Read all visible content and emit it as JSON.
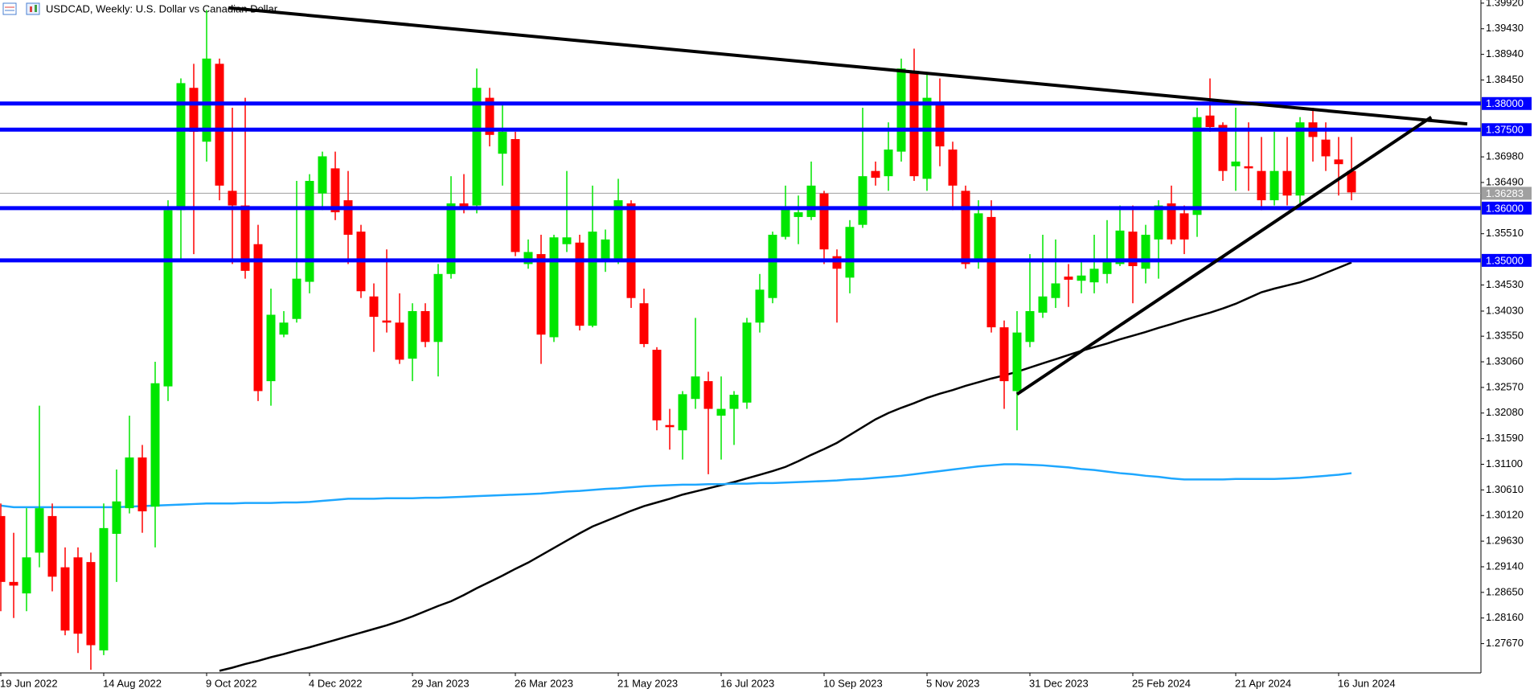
{
  "chart_data": {
    "type": "candlestick",
    "title": "USDCAD, Weekly:  U.S. Dollar vs Canadian Dollar",
    "categories": [
      "19 Jun 2022",
      null,
      null,
      null,
      null,
      null,
      null,
      null,
      "14 Aug 2022",
      null,
      null,
      null,
      null,
      null,
      null,
      null,
      "9 Oct 2022",
      null,
      null,
      null,
      null,
      null,
      null,
      null,
      "4 Dec 2022",
      null,
      null,
      null,
      null,
      null,
      null,
      null,
      "29 Jan 2023",
      null,
      null,
      null,
      null,
      null,
      null,
      null,
      "26 Mar 2023",
      null,
      null,
      null,
      null,
      null,
      null,
      null,
      "21 May 2023",
      null,
      null,
      null,
      null,
      null,
      null,
      null,
      "16 Jul 2023",
      null,
      null,
      null,
      null,
      null,
      null,
      null,
      "10 Sep 2023",
      null,
      null,
      null,
      null,
      null,
      null,
      null,
      "5 Nov 2023",
      null,
      null,
      null,
      null,
      null,
      null,
      null,
      "31 Dec 2023",
      null,
      null,
      null,
      null,
      null,
      null,
      null,
      "25 Feb 2024",
      null,
      null,
      null,
      null,
      null,
      null,
      null,
      "21 Apr 2024",
      null,
      null,
      null,
      null,
      null,
      null,
      null,
      "16 Jun 2024",
      null
    ],
    "open": [
      1.3011,
      1.2885,
      1.2863,
      1.2941,
      1.3011,
      1.2913,
      1.2932,
      1.2923,
      1.2754,
      1.2977,
      1.3026,
      1.3123,
      1.3029,
      1.3259,
      1.3596,
      1.383,
      1.3727,
      1.3876,
      1.3633,
      1.3605,
      1.3531,
      1.3269,
      1.3358,
      1.3388,
      1.3459,
      1.3628,
      1.3676,
      1.3615,
      1.3555,
      1.3431,
      1.3385,
      1.3381,
      1.3312,
      1.3403,
      1.3344,
      1.3474,
      1.3609,
      1.3605,
      1.3811,
      1.3704,
      1.3732,
      1.3493,
      1.3512,
      1.3353,
      1.3531,
      1.3534,
      1.3375,
      1.3497,
      1.3497,
      1.3609,
      1.3418,
      1.3329,
      1.3185,
      1.3175,
      1.3235,
      1.3269,
      1.3203,
      1.3216,
      1.3228,
      1.3381,
      1.3428,
      1.3545,
      1.3583,
      1.3583,
      1.3628,
      1.3508,
      1.3467,
      1.3568,
      1.3671,
      1.3661,
      1.3708,
      1.3858,
      1.3656,
      1.3798,
      1.3712,
      1.3633,
      1.3502,
      1.3583,
      1.3372,
      1.325,
      1.3344,
      1.34,
      1.3428,
      1.3469,
      1.3461,
      1.3458,
      1.3474,
      1.3493,
      1.3555,
      1.3484,
      1.354,
      1.3609,
      1.359,
      1.3587,
      1.3777,
      1.3759,
      1.368,
      1.368,
      1.3671,
      1.3615,
      1.3671,
      1.3624,
      1.3764,
      1.3731,
      1.3693,
      1.3671
    ],
    "high": [
      1.3035,
      1.2979,
      1.3026,
      1.3222,
      1.3035,
      1.2951,
      1.2951,
      1.2941,
      1.3035,
      1.31,
      1.3203,
      1.3147,
      1.3306,
      1.3615,
      1.3848,
      1.3876,
      1.3979,
      1.3886,
      1.3792,
      1.3811,
      1.3568,
      1.3446,
      1.3403,
      1.3652,
      1.3665,
      1.3708,
      1.3708,
      1.3671,
      1.3568,
      1.3456,
      1.3521,
      1.3437,
      1.3418,
      1.3418,
      1.3493,
      1.3661,
      1.3665,
      1.3867,
      1.383,
      1.3802,
      1.3746,
      1.354,
      1.3549,
      1.3549,
      1.3671,
      1.3549,
      1.3643,
      1.3559,
      1.3656,
      1.3615,
      1.3446,
      1.3334,
      1.3216,
      1.325,
      1.339,
      1.3287,
      1.3278,
      1.325,
      1.339,
      1.3474,
      1.3555,
      1.3643,
      1.3624,
      1.3689,
      1.3633,
      1.3521,
      1.3577,
      1.3792,
      1.3689,
      1.3764,
      1.3886,
      1.3905,
      1.3858,
      1.3848,
      1.3727,
      1.3643,
      1.3615,
      1.3615,
      1.3385,
      1.3403,
      1.3512,
      1.3549,
      1.354,
      1.3493,
      1.3502,
      1.3549,
      1.3577,
      1.3605,
      1.3605,
      1.3568,
      1.3615,
      1.3643,
      1.3605,
      1.3792,
      1.3848,
      1.3764,
      1.3792,
      1.3764,
      1.3736,
      1.3746,
      1.3736,
      1.3774,
      1.3792,
      1.3764,
      1.3736,
      1.3736
    ],
    "low": [
      1.2829,
      1.2816,
      1.2829,
      1.2913,
      1.2867,
      1.2783,
      1.2749,
      1.2717,
      1.2745,
      1.2885,
      1.3016,
      1.2979,
      1.2951,
      1.3231,
      1.3502,
      1.3512,
      1.3689,
      1.3615,
      1.3493,
      1.3465,
      1.3231,
      1.3222,
      1.3353,
      1.3381,
      1.3437,
      1.3596,
      1.3577,
      1.3493,
      1.3428,
      1.3325,
      1.3362,
      1.3302,
      1.3269,
      1.3334,
      1.3278,
      1.3465,
      1.359,
      1.359,
      1.3718,
      1.3643,
      1.3508,
      1.3484,
      1.3302,
      1.3344,
      1.3516,
      1.3366,
      1.3372,
      1.3478,
      1.3493,
      1.3409,
      1.3334,
      1.3175,
      1.3138,
      1.3119,
      1.3216,
      1.3091,
      1.3119,
      1.3147,
      1.3216,
      1.3362,
      1.3418,
      1.354,
      1.3531,
      1.3577,
      1.3493,
      1.3381,
      1.3437,
      1.3562,
      1.3643,
      1.3633,
      1.3689,
      1.3652,
      1.3633,
      1.368,
      1.3596,
      1.3484,
      1.3484,
      1.3362,
      1.3216,
      1.3175,
      1.3334,
      1.339,
      1.3409,
      1.3411,
      1.3437,
      1.3437,
      1.3456,
      1.3489,
      1.3418,
      1.3456,
      1.3465,
      1.3531,
      1.3512,
      1.3545,
      1.3746,
      1.3652,
      1.3633,
      1.3633,
      1.3596,
      1.3605,
      1.3605,
      1.3605,
      1.3689,
      1.3671,
      1.3624,
      1.3615
    ],
    "close": [
      1.2885,
      1.2878,
      1.2932,
      1.3026,
      1.2895,
      1.2792,
      1.2786,
      1.2764,
      1.2988,
      1.3039,
      1.3123,
      1.302,
      1.3265,
      1.3596,
      1.3839,
      1.3746,
      1.3886,
      1.3643,
      1.3605,
      1.348,
      1.325,
      1.3396,
      1.3381,
      1.3465,
      1.3652,
      1.3699,
      1.3592,
      1.3549,
      1.3441,
      1.3392,
      1.3381,
      1.331,
      1.3403,
      1.3344,
      1.3474,
      1.3609,
      1.36,
      1.383,
      1.374,
      1.3746,
      1.3516,
      1.3516,
      1.3358,
      1.3544,
      1.3544,
      1.3375,
      1.3555,
      1.354,
      1.3615,
      1.3428,
      1.334,
      1.3194,
      1.3181,
      1.3244,
      1.3278,
      1.3216,
      1.3216,
      1.3243,
      1.3381,
      1.3444,
      1.3549,
      1.3602,
      1.3592,
      1.3643,
      1.3521,
      1.3484,
      1.3564,
      1.3661,
      1.3658,
      1.3712,
      1.3867,
      1.3661,
      1.3811,
      1.3718,
      1.3643,
      1.3493,
      1.359,
      1.3372,
      1.3269,
      1.3362,
      1.3403,
      1.3431,
      1.3456,
      1.3463,
      1.3471,
      1.3484,
      1.3502,
      1.3557,
      1.3489,
      1.3549,
      1.3605,
      1.354,
      1.354,
      1.3774,
      1.3755,
      1.3671,
      1.3689,
      1.3676,
      1.3615,
      1.3671,
      1.3624,
      1.3764,
      1.3736,
      1.3699,
      1.3684,
      1.363
    ],
    "up_color": "#00e600",
    "down_color": "#ff0000",
    "series": [
      {
        "color": "#000000",
        "values": [
          null,
          null,
          null,
          null,
          null,
          null,
          null,
          null,
          null,
          null,
          null,
          null,
          null,
          null,
          null,
          null,
          null,
          1.2715,
          1.2721,
          1.2728,
          1.2734,
          1.2741,
          1.2747,
          1.2754,
          1.276,
          1.2767,
          1.2774,
          1.2781,
          1.2788,
          1.2795,
          1.2802,
          1.281,
          1.2819,
          1.2829,
          1.2839,
          1.2848,
          1.286,
          1.2873,
          1.2885,
          1.2897,
          1.291,
          1.2922,
          1.2936,
          1.295,
          1.2964,
          1.2978,
          1.2991,
          1.3001,
          1.3011,
          1.3021,
          1.303,
          1.3037,
          1.3044,
          1.3052,
          1.3058,
          1.3064,
          1.307,
          1.3076,
          1.3083,
          1.309,
          1.3097,
          1.3105,
          1.3116,
          1.3128,
          1.3139,
          1.3151,
          1.3166,
          1.3181,
          1.3196,
          1.3208,
          1.3218,
          1.3227,
          1.3237,
          1.3245,
          1.3252,
          1.326,
          1.3267,
          1.3274,
          1.328,
          1.3287,
          1.3295,
          1.3303,
          1.3311,
          1.3319,
          1.3327,
          1.3334,
          1.3341,
          1.3349,
          1.3356,
          1.3363,
          1.3371,
          1.3378,
          1.3386,
          1.3393,
          1.34,
          1.3408,
          1.3417,
          1.3428,
          1.3439,
          1.3446,
          1.3452,
          1.3458,
          1.3466,
          1.3476,
          1.3486,
          1.3496
        ]
      },
      {
        "color": "#1ea7ff",
        "values": [
          1.3031,
          1.3028,
          1.3028,
          1.3028,
          1.3028,
          1.3028,
          1.3028,
          1.3028,
          1.3028,
          1.3028,
          1.3029,
          1.303,
          1.3031,
          1.3032,
          1.3033,
          1.3034,
          1.3035,
          1.3035,
          1.3035,
          1.3036,
          1.3036,
          1.3036,
          1.3037,
          1.3037,
          1.3038,
          1.304,
          1.3042,
          1.3044,
          1.3044,
          1.3044,
          1.3045,
          1.3045,
          1.3045,
          1.3046,
          1.3046,
          1.3047,
          1.3048,
          1.3049,
          1.305,
          1.3051,
          1.3052,
          1.3053,
          1.3054,
          1.3056,
          1.3058,
          1.3059,
          1.3061,
          1.3063,
          1.3064,
          1.3066,
          1.3068,
          1.3069,
          1.307,
          1.3071,
          1.3071,
          1.3072,
          1.3072,
          1.3073,
          1.3073,
          1.3074,
          1.3074,
          1.3075,
          1.3076,
          1.3077,
          1.3078,
          1.3079,
          1.3081,
          1.3082,
          1.3084,
          1.3086,
          1.3088,
          1.3091,
          1.3094,
          1.3097,
          1.31,
          1.3103,
          1.3106,
          1.3108,
          1.311,
          1.311,
          1.3109,
          1.3108,
          1.3106,
          1.3104,
          1.3101,
          1.3099,
          1.3096,
          1.3093,
          1.3091,
          1.3088,
          1.3086,
          1.3083,
          1.3081,
          1.3081,
          1.3081,
          1.3081,
          1.3082,
          1.3082,
          1.3082,
          1.3082,
          1.3083,
          1.3084,
          1.3086,
          1.3088,
          1.309,
          1.3093
        ]
      }
    ],
    "levels": [
      {
        "value": 1.38,
        "label": "1.38000"
      },
      {
        "value": 1.375,
        "label": "1.37500"
      },
      {
        "value": 1.36,
        "label": "1.36000"
      },
      {
        "value": 1.35,
        "label": "1.35000"
      }
    ],
    "level_color": "#0000ff",
    "last_price": {
      "value": 1.36283,
      "label": "1.36283"
    },
    "trendlines": [
      {
        "color": "#000000",
        "from": {
          "x": 17.7,
          "y": 1.3983
        },
        "to": {
          "x": 114,
          "y": 1.3761
        }
      },
      {
        "color": "#000000",
        "from": {
          "x": 79,
          "y": 1.3244
        },
        "to": {
          "x": 111.2,
          "y": 1.3774
        }
      }
    ],
    "ylim": [
      1.2711,
      1.3998
    ],
    "yticks": [
      {
        "value": 1.3992,
        "label": "1.39920"
      },
      {
        "value": 1.3943,
        "label": "1.39430"
      },
      {
        "value": 1.3894,
        "label": "1.38940"
      },
      {
        "value": 1.3845,
        "label": "1.38450"
      },
      {
        "value": 1.3698,
        "label": "1.36980"
      },
      {
        "value": 1.3649,
        "label": "1.36490"
      },
      {
        "value": 1.3551,
        "label": "1.35510"
      },
      {
        "value": 1.3453,
        "label": "1.34530"
      },
      {
        "value": 1.3403,
        "label": "1.34030"
      },
      {
        "value": 1.3355,
        "label": "1.33550"
      },
      {
        "value": 1.3306,
        "label": "1.33060"
      },
      {
        "value": 1.3257,
        "label": "1.32570"
      },
      {
        "value": 1.3208,
        "label": "1.32080"
      },
      {
        "value": 1.3159,
        "label": "1.31590"
      },
      {
        "value": 1.311,
        "label": "1.31100"
      },
      {
        "value": 1.3061,
        "label": "1.30610"
      },
      {
        "value": 1.3012,
        "label": "1.30120"
      },
      {
        "value": 1.2963,
        "label": "1.29630"
      },
      {
        "value": 1.2914,
        "label": "1.29140"
      },
      {
        "value": 1.2865,
        "label": "1.28650"
      },
      {
        "value": 1.2816,
        "label": "1.28160"
      },
      {
        "value": 1.2767,
        "label": "1.27670"
      }
    ],
    "grid": false
  }
}
